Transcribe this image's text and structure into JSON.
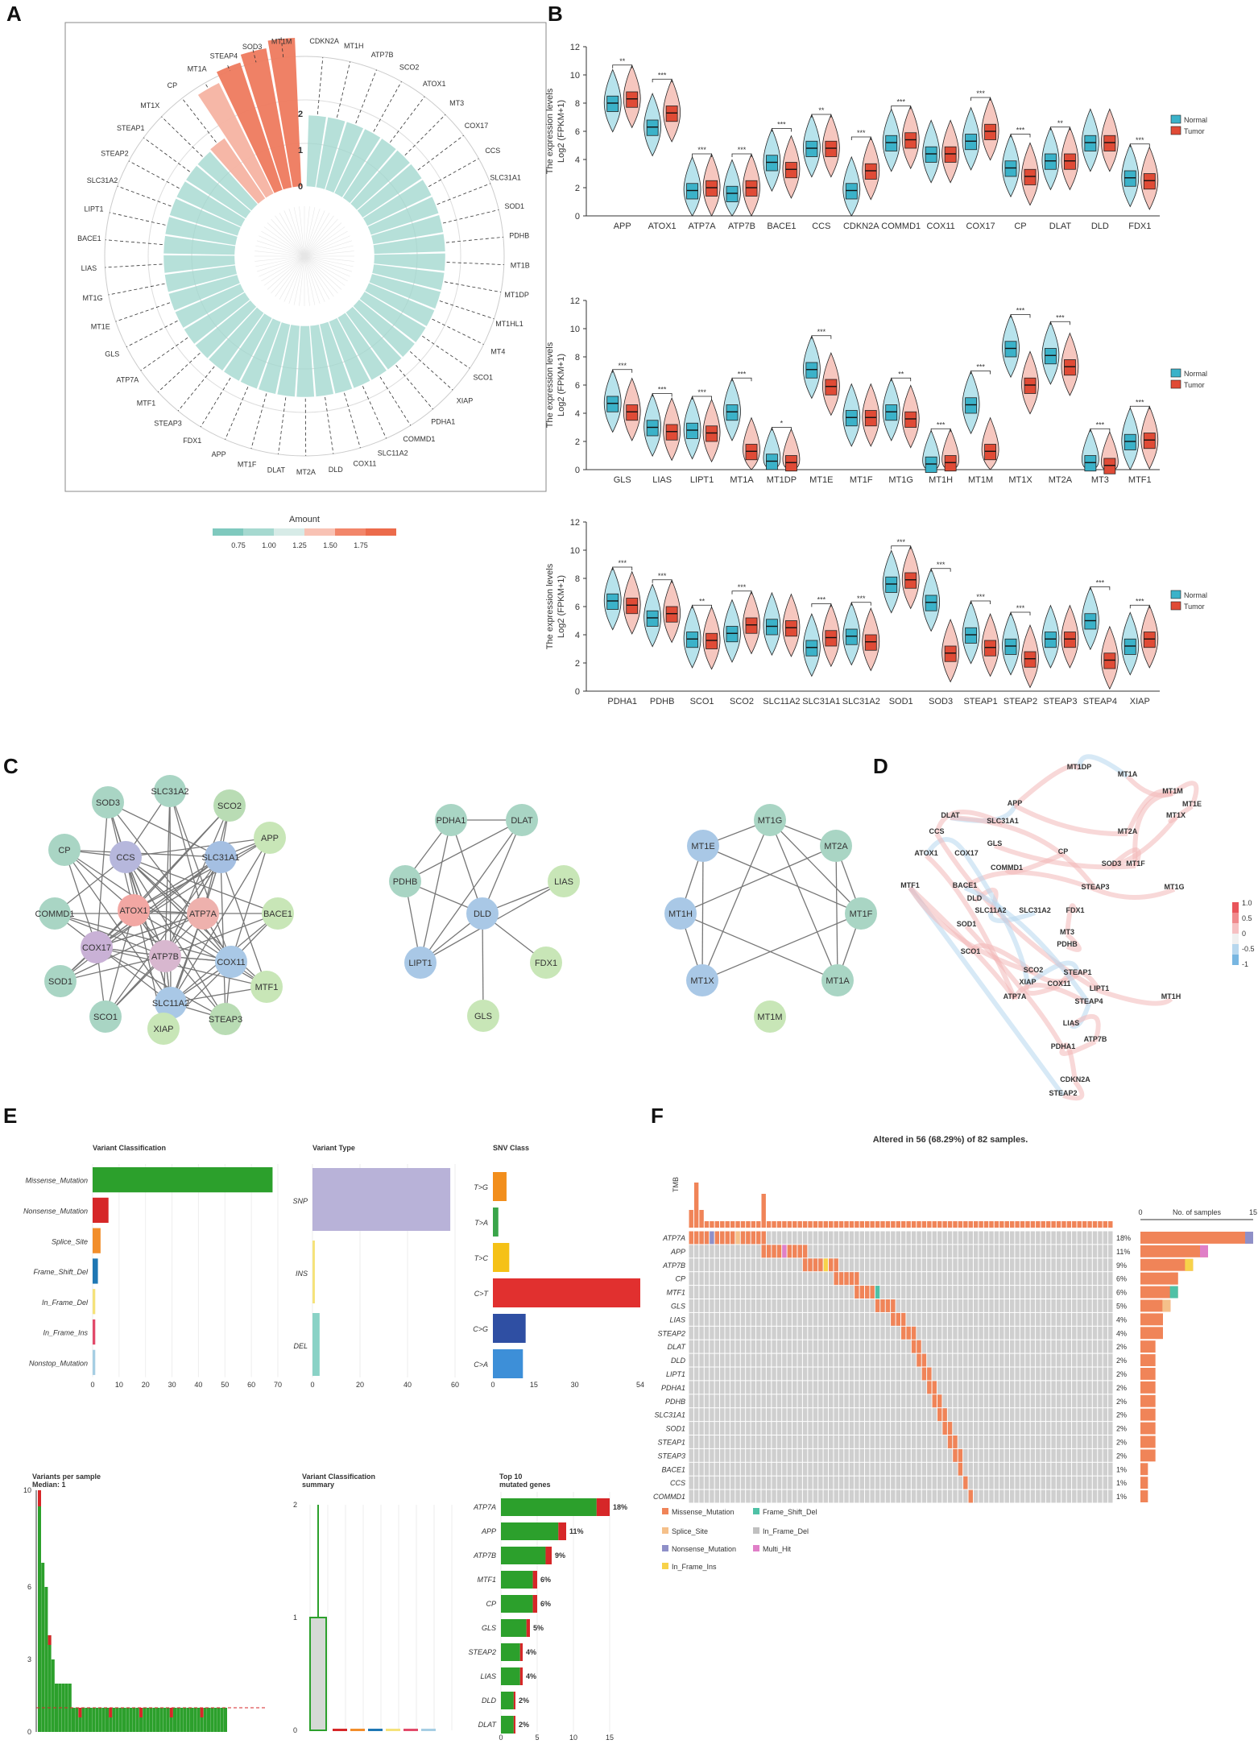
{
  "panels": {
    "A": "A",
    "B": "B",
    "C": "C",
    "D": "D",
    "E": "E",
    "F": "F"
  },
  "colors": {
    "normal": "#3bb2c9",
    "tumor": "#e04b36",
    "teal": "#8ccfc4",
    "salmon": "#f06f4e",
    "green": "#2ca02c",
    "red": "#d62728",
    "grey": "#cccccc",
    "orange": "#f08458"
  },
  "panelA": {
    "genes": [
      "CDKN2A",
      "MT1H",
      "ATP7B",
      "SCO2",
      "ATOX1",
      "MT3",
      "COX17",
      "CCS",
      "SLC31A1",
      "SOD1",
      "PDHB",
      "MT1B",
      "MT1DP",
      "MT1HL1",
      "MT4",
      "SCO1",
      "XIAP",
      "PDHA1",
      "COMMD1",
      "SLC11A2",
      "COX11",
      "DLD",
      "MT2A",
      "DLAT",
      "MT1F",
      "APP",
      "FDX1",
      "STEAP3",
      "MTF1",
      "ATP7A",
      "GLS",
      "MT1E",
      "MT1G",
      "LIAS",
      "BACE1",
      "LIPT1",
      "SLC31A2",
      "STEAP2",
      "STEAP1",
      "MT1X",
      "CP",
      "MT1A",
      "STEAP4",
      "SOD3",
      "MT1M"
    ],
    "radial_ticks": [
      "0",
      "1",
      "2"
    ],
    "legend_title": "Amount",
    "legend_ticks": [
      "0.75",
      "1.00",
      "1.25",
      "1.50",
      "1.75"
    ]
  },
  "panelB": {
    "ylabel1": "The expression levels",
    "ylabel2": "Log2 (FPKM+1)",
    "legend": [
      "Normal",
      "Tumor"
    ],
    "yticks": [
      "0",
      "2",
      "4",
      "6",
      "8",
      "10",
      "12"
    ],
    "rows": [
      {
        "genes": [
          "APP",
          "ATOX1",
          "ATP7A",
          "ATP7B",
          "BACE1",
          "CCS",
          "CDKN2A",
          "COMMD1",
          "COX11",
          "COX17",
          "CP",
          "DLAT",
          "DLD",
          "FDX1"
        ],
        "sig": [
          "**",
          "***",
          "***",
          "***",
          "***",
          "**",
          "***",
          "***",
          "",
          "***",
          "***",
          "**",
          "",
          "***"
        ],
        "normal": [
          8.0,
          6.3,
          1.8,
          1.6,
          3.8,
          4.8,
          1.8,
          5.2,
          4.4,
          5.3,
          3.4,
          3.9,
          5.2,
          2.7
        ],
        "tumor": [
          8.3,
          7.3,
          2.0,
          2.0,
          3.3,
          4.8,
          3.2,
          5.4,
          4.4,
          6.0,
          2.8,
          3.9,
          5.2,
          2.5
        ]
      },
      {
        "genes": [
          "GLS",
          "LIAS",
          "LIPT1",
          "MT1A",
          "MT1DP",
          "MT1E",
          "MT1F",
          "MT1G",
          "MT1H",
          "MT1M",
          "MT1X",
          "MT2A",
          "MT3",
          "MTF1"
        ],
        "sig": [
          "***",
          "***",
          "***",
          "***",
          "*",
          "***",
          "",
          "**",
          "***",
          "***",
          "***",
          "***",
          "***",
          "***"
        ],
        "normal": [
          4.7,
          3.0,
          2.8,
          4.1,
          0.6,
          7.1,
          3.7,
          4.1,
          0.4,
          4.6,
          8.6,
          8.1,
          0.5,
          2.0
        ],
        "tumor": [
          4.1,
          2.7,
          2.6,
          1.3,
          0.5,
          5.9,
          3.7,
          3.6,
          0.5,
          1.3,
          6.0,
          7.3,
          0.3,
          2.1
        ]
      },
      {
        "genes": [
          "PDHA1",
          "PDHB",
          "SCO1",
          "SCO2",
          "SLC11A2",
          "SLC31A1",
          "SLC31A2",
          "SOD1",
          "SOD3",
          "STEAP1",
          "STEAP2",
          "STEAP3",
          "STEAP4",
          "XIAP"
        ],
        "sig": [
          "***",
          "***",
          "**",
          "***",
          "",
          "***",
          "***",
          "***",
          "***",
          "***",
          "***",
          "",
          "***",
          "***"
        ],
        "normal": [
          6.4,
          5.2,
          3.7,
          4.1,
          4.6,
          3.1,
          3.9,
          7.6,
          6.3,
          4.0,
          3.2,
          3.7,
          5.0,
          3.2
        ],
        "tumor": [
          6.1,
          5.5,
          3.6,
          4.7,
          4.5,
          3.8,
          3.5,
          7.9,
          2.7,
          3.1,
          2.3,
          3.7,
          2.2,
          3.7
        ]
      }
    ]
  },
  "panelC": {
    "net1": [
      "SOD3",
      "SLC31A2",
      "SCO2",
      "CP",
      "CCS",
      "SLC31A1",
      "APP",
      "COMMD1",
      "ATOX1",
      "ATP7A",
      "BACE1",
      "COX17",
      "ATP7B",
      "COX11",
      "SOD1",
      "MTF1",
      "SLC11A2",
      "SCO1",
      "STEAP3",
      "XIAP"
    ],
    "net2": [
      "PDHA1",
      "DLAT",
      "PDHB",
      "LIAS",
      "DLD",
      "LIPT1",
      "FDX1",
      "GLS"
    ],
    "net3": [
      "MT1G",
      "MT1E",
      "MT2A",
      "MT1H",
      "MT1F",
      "MT1X",
      "MT1A",
      "MT1M"
    ]
  },
  "panelD": {
    "labels": [
      "MT1DP",
      "MT1A",
      "MT1M",
      "MT1E",
      "MT1X",
      "APP",
      "DLAT",
      "SLC31A1",
      "CCS",
      "GLS",
      "MT2A",
      "CP",
      "ATOX1",
      "COX17",
      "MT1F",
      "SOD3",
      "COMMD1",
      "MTF1",
      "BACE1",
      "STEAP3",
      "MT1G",
      "DLD",
      "SLC11A2",
      "SLC31A2",
      "FDX1",
      "SOD1",
      "MT3",
      "PDHB",
      "SCO1",
      "SCO2",
      "STEAP1",
      "XIAP",
      "COX11",
      "LIPT1",
      "MT1H",
      "ATP7A",
      "STEAP4",
      "LIAS",
      "ATP7B",
      "PDHA1",
      "CDKN2A",
      "STEAP2"
    ],
    "legend_ticks": [
      "1.0",
      "0.5",
      "0",
      "-0.5",
      "-1"
    ]
  },
  "panelE": {
    "vc_title": "Variant Classification",
    "vc_categories": [
      "Missense_Mutation",
      "Nonsense_Mutation",
      "Splice_Site",
      "Frame_Shift_Del",
      "In_Frame_Del",
      "In_Frame_Ins",
      "Nonstop_Mutation"
    ],
    "vc_values": [
      68,
      6,
      3,
      2,
      1,
      1,
      1
    ],
    "vc_ticks": [
      "0",
      "10",
      "20",
      "30",
      "40",
      "50",
      "60",
      "70"
    ],
    "vt_title": "Variant Type",
    "vt_categories": [
      "SNP",
      "INS",
      "DEL"
    ],
    "vt_values": [
      58,
      1,
      3
    ],
    "vt_ticks": [
      "0",
      "20",
      "40",
      "60"
    ],
    "snv_title": "SNV Class",
    "snv_categories": [
      "T>G",
      "T>A",
      "T>C",
      "C>T",
      "C>G",
      "C>A"
    ],
    "snv_values": [
      5,
      2,
      6,
      54,
      12,
      11
    ],
    "snv_ticks": [
      "0",
      "15",
      "30",
      "54"
    ],
    "vps_title": "Variants per sample",
    "vps_median": "Median: 1",
    "vps_ticks": [
      "0",
      "3",
      "6",
      "10"
    ],
    "vcs_title1": "Variant Classification",
    "vcs_title2": "summary",
    "vcs_ticks": [
      "0",
      "1",
      "2"
    ],
    "top_title1": "Top 10",
    "top_title2": "mutated genes",
    "top_genes": [
      "ATP7A",
      "APP",
      "ATP7B",
      "MTF1",
      "CP",
      "GLS",
      "STEAP2",
      "LIAS",
      "DLD",
      "DLAT"
    ],
    "top_values": [
      15,
      9,
      7,
      5,
      5,
      4,
      3,
      3,
      2,
      2
    ],
    "top_pct": [
      "18%",
      "11%",
      "9%",
      "6%",
      "6%",
      "5%",
      "4%",
      "4%",
      "2%",
      "2%"
    ],
    "top_ticks": [
      "0",
      "5",
      "10",
      "15"
    ]
  },
  "panelF": {
    "title": "Altered in 56 (68.29%) of 82 samples.",
    "tmb_label": "TMB",
    "genes": [
      "ATP7A",
      "APP",
      "ATP7B",
      "CP",
      "MTF1",
      "GLS",
      "LIAS",
      "STEAP2",
      "DLAT",
      "DLD",
      "LIPT1",
      "PDHA1",
      "PDHB",
      "SLC31A1",
      "SOD1",
      "STEAP1",
      "STEAP3",
      "BACE1",
      "CCS",
      "COMMD1"
    ],
    "pct": [
      "18%",
      "11%",
      "9%",
      "6%",
      "6%",
      "5%",
      "4%",
      "4%",
      "2%",
      "2%",
      "2%",
      "2%",
      "2%",
      "2%",
      "2%",
      "2%",
      "2%",
      "1%",
      "1%",
      "1%"
    ],
    "counts": [
      15,
      9,
      7,
      5,
      5,
      4,
      3,
      3,
      2,
      2,
      2,
      2,
      2,
      2,
      2,
      2,
      2,
      1,
      1,
      1
    ],
    "side_ticks": [
      "0",
      "No. of samples",
      "15"
    ],
    "legend": [
      "Missense_Mutation",
      "Frame_Shift_Del",
      "Splice_Site",
      "In_Frame_Del",
      "Nonsense_Mutation",
      "Multi_Hit",
      "In_Frame_Ins"
    ],
    "legend_colors": [
      "#f08458",
      "#4fc1a6",
      "#f5c08a",
      "#c0c0c0",
      "#8f90c8",
      "#e07fc7",
      "#f7d24a"
    ]
  }
}
